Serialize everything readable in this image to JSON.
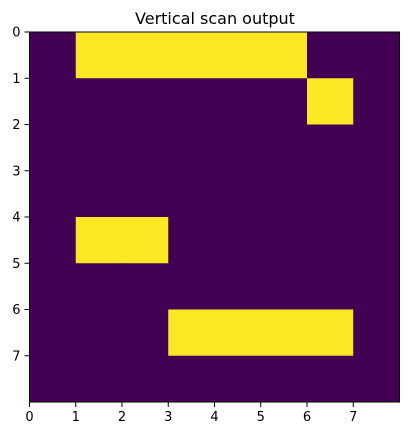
{
  "chart_data": {
    "type": "heatmap",
    "title": "Vertical scan output",
    "xlabel": "",
    "ylabel": "",
    "colors": {
      "low": "#440154",
      "high": "#fde725"
    },
    "xlim": [
      0,
      8
    ],
    "ylim": [
      8,
      0
    ],
    "xticks": [
      "0",
      "1",
      "2",
      "3",
      "4",
      "5",
      "6",
      "7"
    ],
    "yticks": [
      "0",
      "1",
      "2",
      "3",
      "4",
      "5",
      "6",
      "7"
    ],
    "grid": false,
    "values": [
      [
        0,
        1,
        1,
        1,
        1,
        1,
        0,
        0
      ],
      [
        0,
        0,
        0,
        0,
        0,
        0,
        1,
        0
      ],
      [
        0,
        0,
        0,
        0,
        0,
        0,
        0,
        0
      ],
      [
        0,
        0,
        0,
        0,
        0,
        0,
        0,
        0
      ],
      [
        0,
        1,
        1,
        0,
        0,
        0,
        0,
        0
      ],
      [
        0,
        0,
        0,
        0,
        0,
        0,
        0,
        0
      ],
      [
        0,
        0,
        0,
        1,
        1,
        1,
        1,
        0
      ],
      [
        0,
        0,
        0,
        0,
        0,
        0,
        0,
        0
      ]
    ]
  }
}
